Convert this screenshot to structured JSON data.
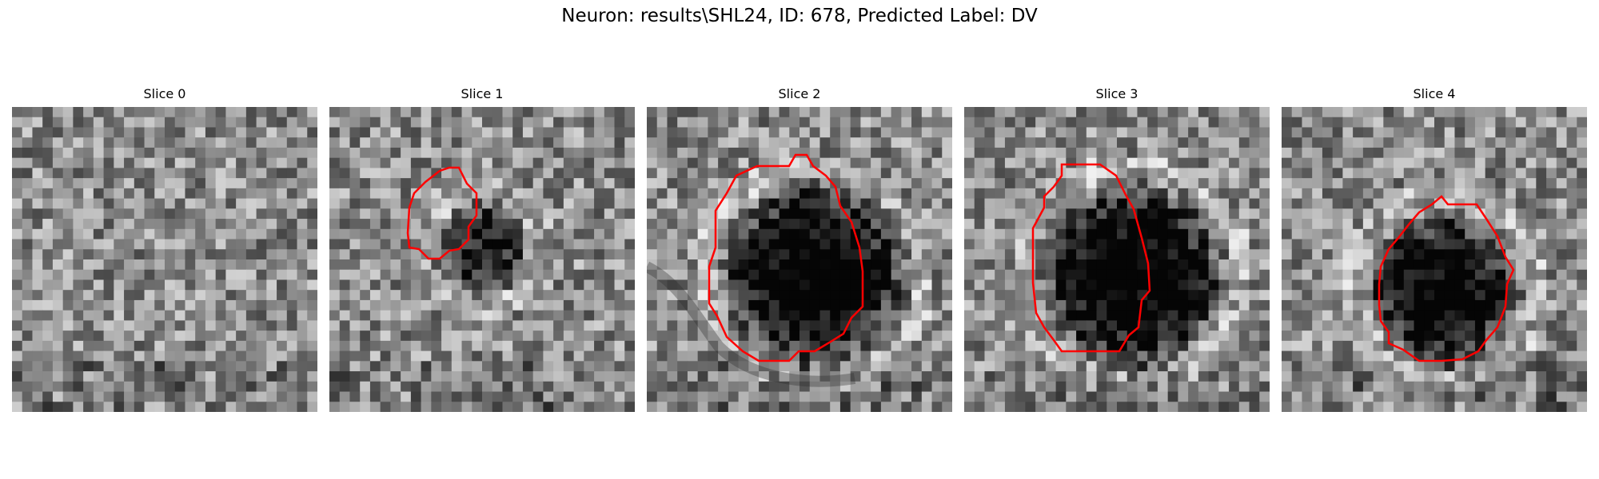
{
  "figure": {
    "title": "Neuron: results\\SHL24, ID: 678, Predicted Label: DV"
  },
  "panels": [
    {
      "title": "Slice 0",
      "has_contour": false
    },
    {
      "title": "Slice 1",
      "has_contour": true
    },
    {
      "title": "Slice 2",
      "has_contour": true
    },
    {
      "title": "Slice 3",
      "has_contour": true
    },
    {
      "title": "Slice 4",
      "has_contour": true
    }
  ],
  "colors": {
    "contour": "#ff0000",
    "colormap": "grayscale"
  }
}
